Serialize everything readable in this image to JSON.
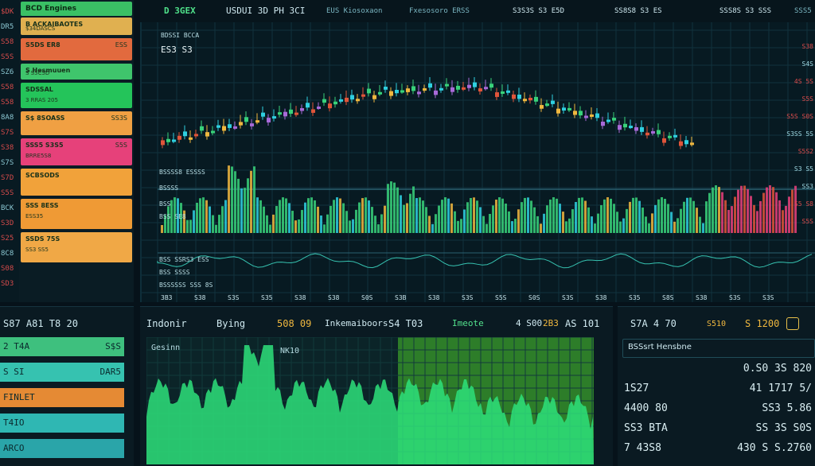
{
  "left_rail": {
    "labels": [
      "$DK",
      "DR5",
      "S58",
      "S5S",
      "SZ6",
      "S58",
      "S58",
      "8A8",
      "S7S",
      "S38",
      "S7S",
      "S7D",
      "S5S",
      "BCK",
      "S3D",
      "S25",
      "8C8",
      "S08",
      "SD3"
    ]
  },
  "watchlist": {
    "title": "BCD Engines",
    "rows": [
      {
        "name": "B ACKAIBAOTES",
        "sub": "$34DASCS",
        "value": "",
        "color": "#e0b050"
      },
      {
        "name": "S5DS ER8",
        "sub": "",
        "value": "ESS",
        "color": "#e26a3e"
      },
      {
        "name": "S Hesmuuen",
        "sub": "S S5C5D",
        "value": "",
        "color": "#3fc56c"
      },
      {
        "name": "SDSSAL",
        "sub": "3 RRAS 205",
        "value": "",
        "color": "#24c45a"
      },
      {
        "name": "S$ 8SOASS",
        "sub": "",
        "value": "SS3S",
        "color": "#f0a043"
      },
      {
        "name": "SSS5 S3S5",
        "sub": "BRRE5S8",
        "value": "S5S",
        "color": "#e6417a"
      },
      {
        "name": "SCBSODS",
        "sub": "",
        "value": "",
        "color": "#f1a23a"
      },
      {
        "name": "SSS 8ESS",
        "sub": "ESS35",
        "value": "",
        "color": "#ef9a35"
      },
      {
        "name": "SSDS 75S",
        "sub": "SS3 SS5",
        "value": "",
        "color": "#f0a846"
      }
    ]
  },
  "topbar": {
    "logo": "D 3GEX",
    "title": "USDUI 3D PH 3CI",
    "items": [
      "EUS Kiosoxaon",
      "Fxesosoro ERSS",
      "S3S3S  S3 E5D",
      "SS8S8  S3 ES",
      "SSS8S  S3 SSS",
      "SSS5"
    ]
  },
  "main_chart": {
    "symbol": "BDSSI BCCA",
    "price": "ES3 S3",
    "indicator_1": "BSSSS8 ESSSS",
    "indicator_2": "BSSSS",
    "indicator_3": "BSS",
    "indicator_4": "BSS SE8",
    "volume_label": "BSS SSRS3 ESS",
    "volume_sub": "BSS SSSS",
    "volume_sub2": "BSSSSSS SSS 8S",
    "x_ticks": [
      "3B3",
      "S38",
      "S3S",
      "S35",
      "S38",
      "S38",
      "S0S",
      "S3B",
      "S38",
      "S3S",
      "S5S",
      "S0S",
      "S3S",
      "S38",
      "S35",
      "S8S",
      "S38",
      "S3S",
      "S3S"
    ],
    "right_labels": [
      {
        "text": "S38",
        "color": "#d94a4a"
      },
      {
        "text": "S4S",
        "color": "#9dd7e1"
      },
      {
        "text": "4S 5S",
        "color": "#d94a4a"
      },
      {
        "text": "S5S",
        "color": "#d94a4a"
      },
      {
        "text": "S5S S0S",
        "color": "#d94a4a"
      },
      {
        "text": "S3SS 5S",
        "color": "#9dd7e1"
      },
      {
        "text": "S5S2",
        "color": "#d94a4a"
      },
      {
        "text": "S3 S5",
        "color": "#9dd7e1"
      },
      {
        "text": "SS3",
        "color": "#9dd7e1"
      },
      {
        "text": "S5 S8",
        "color": "#d94a4a"
      },
      {
        "text": "S5S",
        "color": "#d94a4a"
      }
    ]
  },
  "bottom_left": {
    "header": "S87 A81 T8 20",
    "rows": [
      {
        "label": "2 T4A",
        "value": "S$S",
        "color": "#3ec07e"
      },
      {
        "label": "S SI",
        "value": "DAR5",
        "color": "#36c2b0"
      },
      {
        "label": "FINLET",
        "value": "",
        "color": "#e58a34"
      },
      {
        "label": "T4IO",
        "value": "",
        "color": "#2fb7b3"
      },
      {
        "label": "ARCO",
        "value": "",
        "color": "#2aa5a9"
      }
    ]
  },
  "bottom_center": {
    "title": "Indonir",
    "buying": "Bying",
    "value_1": "508 09",
    "label_2": "Inkemaiboors",
    "value_2": "S4 T03",
    "label_3": "Imeote",
    "value_3": "4 S00",
    "value_4": "2B3",
    "value_5": "AS 101",
    "chart_title": "Gesinn",
    "chart_tag": "NK10"
  },
  "bottom_right": {
    "header": "S7A 4 70",
    "value_a": "S510",
    "value_b": "S 1200",
    "title": "BSSsrt Hensbne",
    "rows": [
      {
        "left": "",
        "right": "0.S0 3S 820"
      },
      {
        "left": "1S27",
        "right": "41 1717 5/"
      },
      {
        "left": "4400 80",
        "right": "SS3 5.86"
      },
      {
        "left": "SS3 BTA",
        "right": "SS 3S S0S"
      },
      {
        "left": "7 43S8",
        "right": "430  S  S.2760"
      }
    ]
  },
  "colors": {
    "up": "#38d27a",
    "down": "#e0553a",
    "accent": "#2fd0e0",
    "panel": "#0a1a22"
  }
}
